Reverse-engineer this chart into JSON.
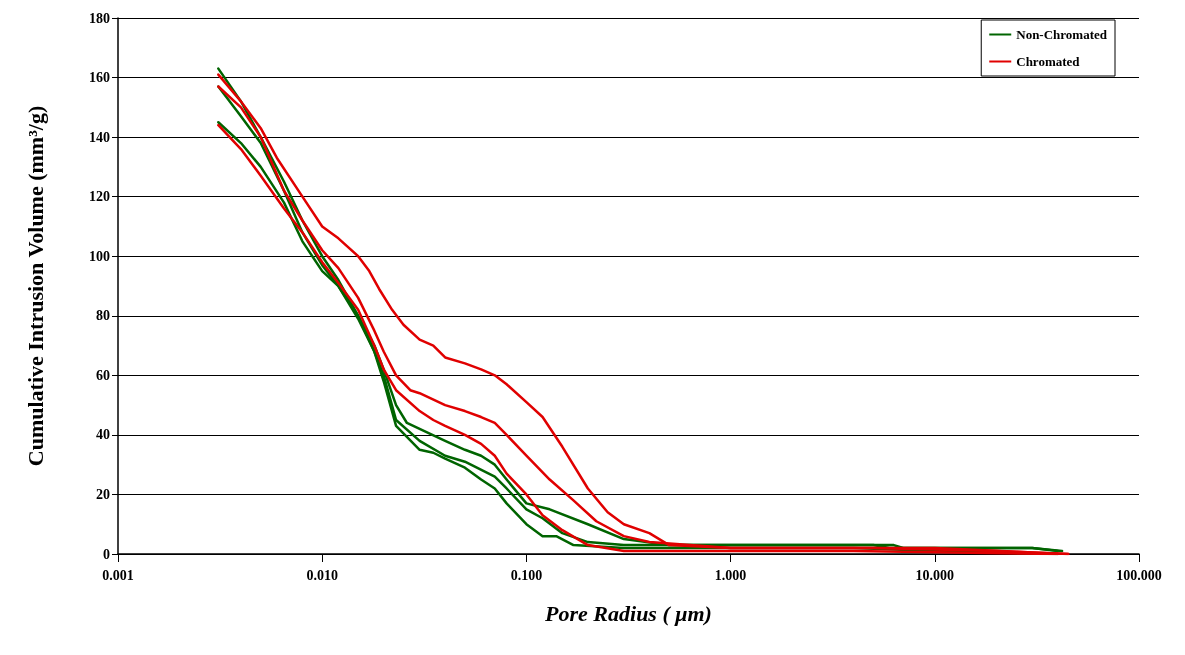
{
  "chart_data": {
    "type": "line",
    "xlabel": "Pore Radius ( μm)",
    "ylabel": "Cumulative Intrusion Volume (mm³/g)",
    "log": "x",
    "xlim": [
      0.001,
      100
    ],
    "xticks": [
      {
        "value": 0.001,
        "label": "0.001"
      },
      {
        "value": 0.01,
        "label": "0.010"
      },
      {
        "value": 0.1,
        "label": "0.100"
      },
      {
        "value": 1,
        "label": "1.000"
      },
      {
        "value": 10,
        "label": "10.000"
      },
      {
        "value": 100,
        "label": "100.000"
      }
    ],
    "ylim": [
      0,
      180
    ],
    "yticks": [
      0,
      20,
      40,
      60,
      80,
      100,
      120,
      140,
      160,
      180
    ],
    "grid": "y",
    "legend": "top right",
    "marker": "none",
    "line_style": "solid",
    "series": [
      {
        "name": "Non-Chromated",
        "color": "#006400",
        "x": [
          0.0031,
          0.004,
          0.005,
          0.0065,
          0.008,
          0.01,
          0.012,
          0.015,
          0.018,
          0.02,
          0.023,
          0.026,
          0.03,
          0.04,
          0.05,
          0.06,
          0.07,
          0.08,
          0.1,
          0.13,
          0.2,
          0.3,
          0.5,
          1,
          5,
          6.3,
          7,
          30,
          42
        ],
        "values": [
          163,
          152,
          140,
          125,
          112,
          100,
          92,
          80,
          70,
          62,
          50,
          44,
          42,
          38,
          35,
          33,
          30,
          25,
          17,
          15,
          10,
          5,
          3,
          3,
          3,
          3,
          2,
          2,
          1
        ]
      },
      {
        "color": "#006400",
        "x": [
          0.0031,
          0.004,
          0.005,
          0.0065,
          0.008,
          0.01,
          0.012,
          0.015,
          0.018,
          0.02,
          0.023,
          0.03,
          0.04,
          0.05,
          0.07,
          0.08,
          0.1,
          0.12,
          0.15,
          0.2,
          0.3,
          1,
          5,
          6,
          30,
          40
        ],
        "values": [
          157,
          147,
          138,
          122,
          108,
          97,
          90,
          79,
          68,
          60,
          45,
          38,
          33,
          31,
          26,
          22,
          15,
          12,
          7,
          4,
          3,
          3,
          3,
          2,
          2,
          1
        ]
      },
      {
        "color": "#006400",
        "x": [
          0.0031,
          0.004,
          0.005,
          0.0065,
          0.008,
          0.01,
          0.012,
          0.015,
          0.018,
          0.02,
          0.023,
          0.03,
          0.035,
          0.04,
          0.05,
          0.06,
          0.07,
          0.08,
          0.1,
          0.12,
          0.14,
          0.17,
          0.3,
          1,
          4,
          10,
          40
        ],
        "values": [
          145,
          138,
          130,
          118,
          105,
          95,
          90,
          80,
          68,
          58,
          43,
          35,
          34,
          32,
          29,
          25,
          22,
          17,
          10,
          6,
          6,
          3,
          2,
          2,
          2,
          1,
          0
        ]
      },
      {
        "name": "Chromated",
        "color": "#e00000",
        "x": [
          0.0031,
          0.004,
          0.005,
          0.006,
          0.008,
          0.01,
          0.012,
          0.015,
          0.017,
          0.019,
          0.022,
          0.025,
          0.03,
          0.035,
          0.04,
          0.05,
          0.06,
          0.07,
          0.08,
          0.1,
          0.12,
          0.15,
          0.2,
          0.25,
          0.3,
          0.4,
          0.5,
          1,
          10,
          45
        ],
        "values": [
          161,
          152,
          143,
          133,
          120,
          110,
          106,
          100,
          95,
          89,
          82,
          77,
          72,
          70,
          66,
          64,
          62,
          60,
          57,
          51,
          46,
          36,
          22,
          14,
          10,
          7,
          3,
          2,
          2,
          0
        ]
      },
      {
        "color": "#e00000",
        "x": [
          0.0031,
          0.004,
          0.005,
          0.0065,
          0.008,
          0.01,
          0.012,
          0.015,
          0.018,
          0.02,
          0.023,
          0.027,
          0.03,
          0.04,
          0.05,
          0.06,
          0.07,
          0.08,
          0.1,
          0.13,
          0.17,
          0.22,
          0.3,
          0.4,
          1,
          5,
          20,
          45
        ],
        "values": [
          157,
          150,
          140,
          122,
          112,
          102,
          96,
          86,
          75,
          68,
          60,
          55,
          54,
          50,
          48,
          46,
          44,
          40,
          33,
          25,
          18,
          11,
          6,
          4,
          2,
          2,
          1,
          0
        ]
      },
      {
        "color": "#e00000",
        "x": [
          0.0031,
          0.004,
          0.005,
          0.0065,
          0.008,
          0.01,
          0.012,
          0.015,
          0.018,
          0.02,
          0.023,
          0.03,
          0.035,
          0.04,
          0.05,
          0.06,
          0.07,
          0.08,
          0.1,
          0.12,
          0.15,
          0.2,
          0.3,
          1,
          4,
          40
        ],
        "values": [
          144,
          136,
          127,
          116,
          108,
          98,
          91,
          82,
          70,
          62,
          55,
          48,
          45,
          43,
          40,
          37,
          33,
          27,
          20,
          13,
          8,
          3,
          1,
          1,
          1,
          0
        ]
      }
    ]
  }
}
